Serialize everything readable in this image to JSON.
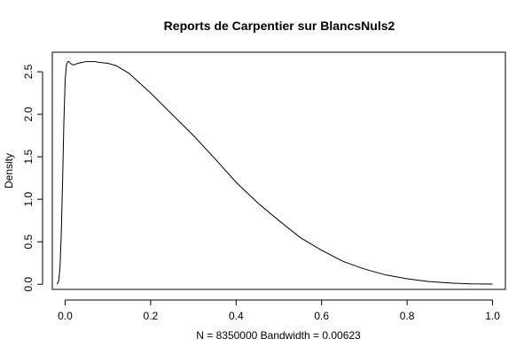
{
  "chart_data": {
    "type": "line",
    "title": "Reports de Carpentier sur BlancsNuls2",
    "xlabel": "N = 8350000   Bandwidth = 0.00623",
    "ylabel": "Density",
    "xlim": [
      -0.03,
      1.03
    ],
    "ylim": [
      -0.06,
      2.73
    ],
    "x_ticks": [
      0.0,
      0.2,
      0.4,
      0.6,
      0.8,
      1.0
    ],
    "x_tick_labels": [
      "0.0",
      "0.2",
      "0.4",
      "0.6",
      "0.8",
      "1.0"
    ],
    "y_ticks": [
      0.0,
      0.5,
      1.0,
      1.5,
      2.0,
      2.5
    ],
    "y_tick_labels": [
      "0.0",
      "0.5",
      "1.0",
      "1.5",
      "2.0",
      "2.5"
    ],
    "grid": false,
    "legend": "none",
    "series": [
      {
        "color": "#000000",
        "x": [
          -0.019,
          -0.015,
          -0.012,
          -0.009,
          -0.006,
          -0.003,
          0.0,
          0.003,
          0.006,
          0.009,
          0.012,
          0.015,
          0.02,
          0.025,
          0.03,
          0.04,
          0.05,
          0.06,
          0.07,
          0.08,
          0.1,
          0.12,
          0.15,
          0.2,
          0.25,
          0.3,
          0.35,
          0.4,
          0.45,
          0.5,
          0.55,
          0.6,
          0.65,
          0.7,
          0.75,
          0.8,
          0.85,
          0.9,
          0.95,
          1.0
        ],
        "y": [
          0.0,
          0.04,
          0.2,
          0.6,
          1.2,
          1.9,
          2.4,
          2.58,
          2.62,
          2.62,
          2.6,
          2.59,
          2.58,
          2.59,
          2.6,
          2.61,
          2.62,
          2.62,
          2.62,
          2.61,
          2.6,
          2.57,
          2.48,
          2.25,
          2.0,
          1.75,
          1.48,
          1.2,
          0.96,
          0.75,
          0.55,
          0.4,
          0.27,
          0.18,
          0.11,
          0.065,
          0.033,
          0.015,
          0.005,
          0.002
        ]
      }
    ]
  }
}
